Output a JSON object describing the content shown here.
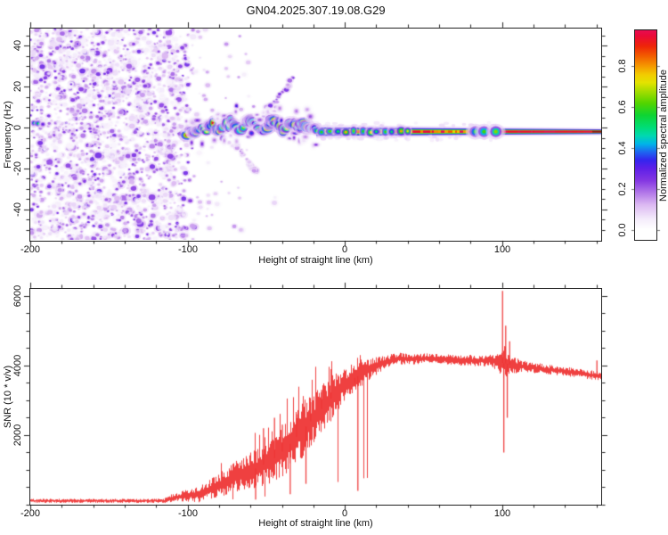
{
  "title": "GN04.2025.307.19.08.G29",
  "colors": {
    "frame": "#222222",
    "snr_trace": "#ee3636",
    "background": "#ffffff",
    "line_end_dark": "#8f0f1d"
  },
  "chart_data": [
    {
      "type": "heatmap",
      "name": "doppler-spectrogram",
      "title": "GN04.2025.307.19.08.G29",
      "xlabel": "Height of straight line (km)",
      "ylabel": "Frequency (Hz)",
      "xlim": [
        -200,
        163
      ],
      "ylim": [
        -55,
        48.5
      ],
      "xticks": [
        -200,
        -100,
        0,
        100
      ],
      "xtick_minor_step": 20,
      "yticks": [
        -40,
        -20,
        0,
        20,
        40
      ],
      "ytick_minor_step": 5,
      "grid": false,
      "colorbar": {
        "label": "Normalized spectral amplitude",
        "ticks": [
          0,
          0.2,
          0.4,
          0.6,
          0.8
        ],
        "range": [
          0,
          1
        ],
        "stops": [
          [
            0.0,
            "#ffffff"
          ],
          [
            0.05,
            "#f4ecfb"
          ],
          [
            0.12,
            "#dcb9f2"
          ],
          [
            0.18,
            "#b277e8"
          ],
          [
            0.24,
            "#8437e2"
          ],
          [
            0.3,
            "#5d1fe8"
          ],
          [
            0.34,
            "#3325ee"
          ],
          [
            0.38,
            "#1e66f0"
          ],
          [
            0.42,
            "#00b4e8"
          ],
          [
            0.46,
            "#00d8b0"
          ],
          [
            0.5,
            "#00dd77"
          ],
          [
            0.56,
            "#0ed433"
          ],
          [
            0.62,
            "#52d400"
          ],
          [
            0.68,
            "#a8dd00"
          ],
          [
            0.72,
            "#e3e300"
          ],
          [
            0.76,
            "#f2cc00"
          ],
          [
            0.8,
            "#f59b00"
          ],
          [
            0.85,
            "#f25e00"
          ],
          [
            0.9,
            "#ee2508"
          ],
          [
            0.95,
            "#ea0a38"
          ],
          [
            1.0,
            "#e60d63"
          ]
        ]
      },
      "features": {
        "noise_region": {
          "x_range": [
            -200,
            -95
          ],
          "fade_end": -93,
          "amplitude_range": [
            0.03,
            0.28
          ],
          "count": 2300
        },
        "sparse_tail": {
          "x_range": [
            -95,
            -35
          ],
          "amplitude_range": [
            0.03,
            0.16
          ],
          "count": 230
        },
        "edge_blobs": [
          {
            "x": -197.5,
            "freq": 2.2,
            "amplitude": 0.5
          },
          {
            "x": -195.0,
            "freq": 2.0,
            "amplitude": 0.55
          },
          {
            "x": -192.0,
            "freq": 1.6,
            "amplitude": 0.3
          }
        ],
        "streaks": [
          {
            "from": [
              -52,
              5
            ],
            "to": [
              -30,
              27
            ],
            "amplitude": 0.22
          },
          {
            "from": [
              -70,
              -8
            ],
            "to": [
              -56,
              -22
            ],
            "amplitude": 0.15
          }
        ],
        "signal_x_range": [
          -100,
          -18
        ],
        "signal_hot_fraction": 0.1,
        "signal_path": [
          [
            -100,
            -2.5
          ],
          [
            -95,
            -2
          ],
          [
            -91,
            0.5
          ],
          [
            -88,
            -1
          ],
          [
            -84,
            2
          ],
          [
            -80,
            -2.5
          ],
          [
            -76,
            1
          ],
          [
            -72,
            3
          ],
          [
            -70,
            0
          ],
          [
            -66,
            -2
          ],
          [
            -62,
            2.5
          ],
          [
            -58,
            4
          ],
          [
            -56,
            1
          ],
          [
            -52,
            -1.5
          ],
          [
            -48,
            2
          ],
          [
            -45,
            4.5
          ],
          [
            -42,
            1
          ],
          [
            -38,
            -1
          ],
          [
            -35,
            2
          ],
          [
            -30,
            0
          ],
          [
            -26,
            1.5
          ],
          [
            -22,
            -0.5
          ],
          [
            -18,
            -2
          ]
        ],
        "line": {
          "x_range": [
            -18,
            163
          ],
          "freq": -2,
          "core_amplitude": 1.0,
          "yellow_segment_x_max": 78,
          "bead_x_range": [
            -18,
            45
          ],
          "bumps": [
            {
              "x": 83,
              "amplitude": 0.55
            },
            {
              "x": 88.5,
              "amplitude": 0.6
            },
            {
              "x": 96,
              "amplitude": 0.65
            }
          ],
          "dark_end_x": 157
        }
      }
    },
    {
      "type": "line",
      "name": "snr-profile",
      "xlabel": "Height of straight line (km)",
      "ylabel": "SNR (10 * v/v)",
      "xlim": [
        -200,
        163
      ],
      "ylim": [
        0,
        6205
      ],
      "xticks": [
        -200,
        -100,
        0,
        100
      ],
      "xtick_minor_step": 20,
      "yticks": [
        2000,
        4000,
        6000
      ],
      "ytick_minor_step": 500,
      "grid": false,
      "series": [
        {
          "name": "SNR",
          "color": "#ee3636",
          "envelope": [
            [
              -200,
              110
            ],
            [
              -115,
              110
            ],
            [
              -110,
              190
            ],
            [
              -100,
              260
            ],
            [
              -92,
              310
            ],
            [
              -86,
              430
            ],
            [
              -78,
              620
            ],
            [
              -70,
              800
            ],
            [
              -62,
              950
            ],
            [
              -54,
              1100
            ],
            [
              -46,
              1300
            ],
            [
              -38,
              1600
            ],
            [
              -30,
              2000
            ],
            [
              -22,
              2400
            ],
            [
              -14,
              2800
            ],
            [
              -6,
              3200
            ],
            [
              2,
              3550
            ],
            [
              10,
              3750
            ],
            [
              18,
              3950
            ],
            [
              26,
              4100
            ],
            [
              34,
              4200
            ],
            [
              44,
              4180
            ],
            [
              54,
              4220
            ],
            [
              64,
              4180
            ],
            [
              74,
              4150
            ],
            [
              84,
              4150
            ],
            [
              94,
              4130
            ],
            [
              100,
              4080
            ],
            [
              106,
              4020
            ],
            [
              116,
              3960
            ],
            [
              126,
              3900
            ],
            [
              136,
              3850
            ],
            [
              146,
              3800
            ],
            [
              156,
              3730
            ],
            [
              163,
              3700
            ]
          ],
          "jitter": [
            [
              -200,
              60
            ],
            [
              -116,
              60
            ],
            [
              -110,
              120
            ],
            [
              -98,
              190
            ],
            [
              -88,
              280
            ],
            [
              -78,
              380
            ],
            [
              -68,
              480
            ],
            [
              -58,
              560
            ],
            [
              -48,
              640
            ],
            [
              -38,
              760
            ],
            [
              -28,
              820
            ],
            [
              -18,
              760
            ],
            [
              -8,
              640
            ],
            [
              0,
              480
            ],
            [
              8,
              380
            ],
            [
              16,
              300
            ],
            [
              26,
              200
            ],
            [
              40,
              150
            ],
            [
              60,
              140
            ],
            [
              80,
              160
            ],
            [
              92,
              180
            ],
            [
              98,
              280
            ],
            [
              101,
              600
            ],
            [
              104,
              300
            ],
            [
              112,
              170
            ],
            [
              130,
              140
            ],
            [
              150,
              130
            ],
            [
              163,
              140
            ]
          ],
          "spikes": [
            {
              "x": -57,
              "v": 150
            },
            {
              "x": -52,
              "v": 2200
            },
            {
              "x": -45,
              "v": 2500
            },
            {
              "x": -40,
              "v": 2300
            },
            {
              "x": -35,
              "v": 300
            },
            {
              "x": -31,
              "v": 2600
            },
            {
              "x": -25,
              "v": 600
            },
            {
              "x": -22,
              "v": 2950
            },
            {
              "x": -15,
              "v": 3300
            },
            {
              "x": -9,
              "v": 3900
            },
            {
              "x": 6,
              "v": 3500
            },
            {
              "x": 8,
              "v": 400
            },
            {
              "x": 100,
              "v": 6150
            },
            {
              "x": 100.8,
              "v": 1500
            },
            {
              "x": 102,
              "v": 5150
            },
            {
              "x": 103,
              "v": 2500
            },
            {
              "x": 104.5,
              "v": 4700
            },
            {
              "x": 160,
              "v": 4150
            }
          ]
        }
      ]
    }
  ]
}
